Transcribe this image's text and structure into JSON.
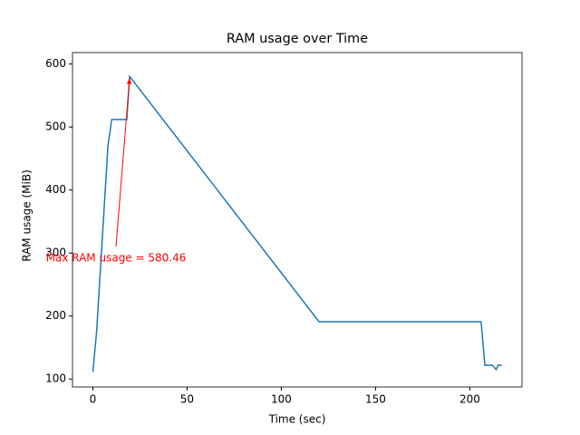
{
  "chart_data": {
    "type": "line",
    "title": "RAM usage over Time",
    "x_label": "Time (sec)",
    "y_label": "RAM usage (MiB)",
    "x": [
      0,
      2,
      8,
      10,
      18,
      19.5,
      120,
      206,
      208,
      212,
      214,
      215,
      217
    ],
    "series": [
      {
        "name": "RAM usage",
        "color": "#1f77b4",
        "values": [
          111,
          175,
          470,
          512,
          512,
          580.46,
          191,
          191,
          122,
          122,
          115,
          122,
          122
        ]
      }
    ],
    "annotation": {
      "text": "Max RAM usage = 580.46",
      "color": "#ff0000"
    },
    "xlim": [
      -10.8,
      227.7
    ],
    "xticks": [
      0,
      50,
      100,
      150,
      200
    ],
    "ylim": [
      87.4,
      618.2
    ],
    "yticks": [
      100,
      200,
      300,
      400,
      500,
      600
    ],
    "grid": false
  }
}
